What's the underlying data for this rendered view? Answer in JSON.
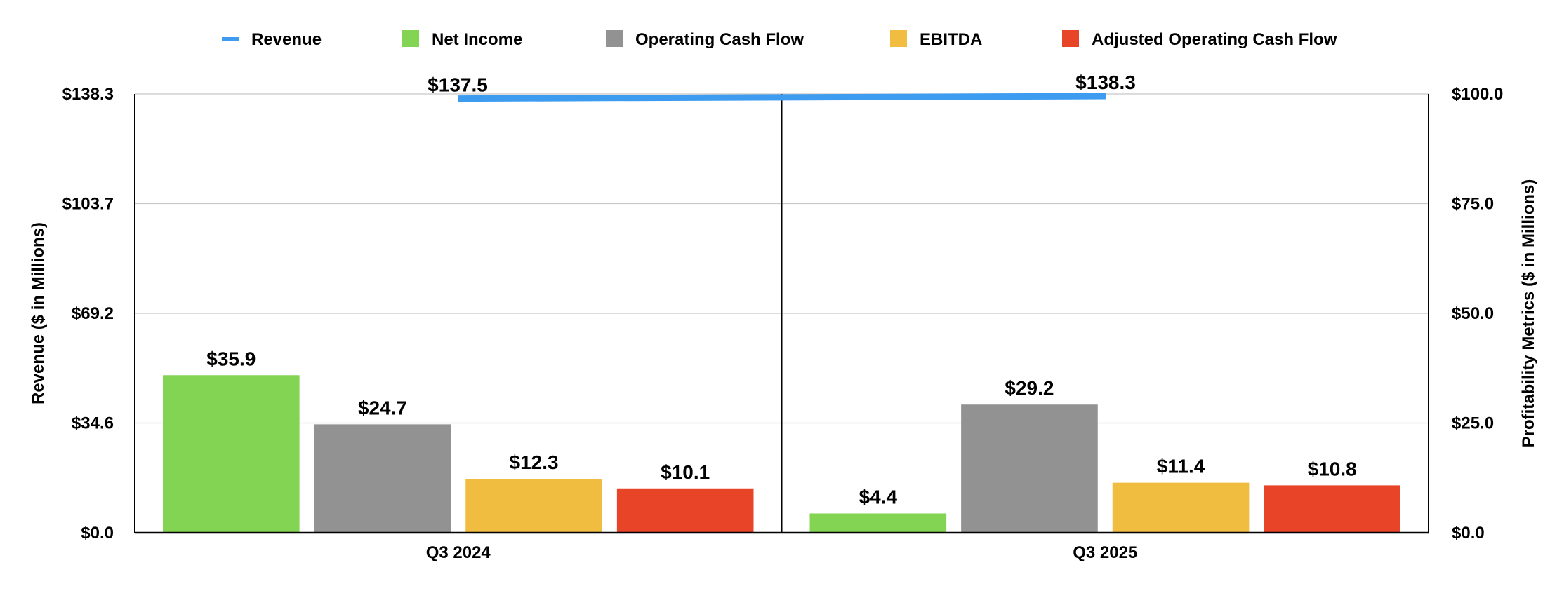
{
  "chart_data": {
    "type": "bar",
    "categories": [
      "Q3 2024",
      "Q3 2025"
    ],
    "left_axis": {
      "label": "Revenue ($ in Millions)",
      "ticks": [
        "$0.0",
        "$34.6",
        "$69.2",
        "$103.7",
        "$138.3"
      ],
      "ylim": [
        0,
        138.3
      ]
    },
    "right_axis": {
      "label": "Profitability Metrics ($ in Millions)",
      "ticks": [
        "$0.0",
        "$25.0",
        "$50.0",
        "$75.0",
        "$100.0"
      ],
      "ylim": [
        0,
        100
      ]
    },
    "grid": true,
    "legend_position": "top",
    "line_series": {
      "name": "Revenue",
      "axis": "left",
      "color": "#3D9BF0",
      "values": [
        137.5,
        138.3
      ],
      "labels": [
        "$137.5",
        "$138.3"
      ]
    },
    "series": [
      {
        "name": "Net Income",
        "axis": "right",
        "color": "#84D454",
        "values": [
          35.9,
          4.4
        ],
        "labels": [
          "$35.9",
          "$4.4"
        ]
      },
      {
        "name": "Operating Cash Flow",
        "axis": "right",
        "color": "#929292",
        "values": [
          24.7,
          29.2
        ],
        "labels": [
          "$24.7",
          "$29.2"
        ]
      },
      {
        "name": "EBITDA",
        "axis": "right",
        "color": "#F0BD40",
        "values": [
          12.3,
          11.4
        ],
        "labels": [
          "$12.3",
          "$11.4"
        ]
      },
      {
        "name": "Adjusted Operating Cash Flow",
        "axis": "right",
        "color": "#E84428",
        "values": [
          10.1,
          10.8
        ],
        "labels": [
          "$10.1",
          "$10.8"
        ]
      }
    ]
  }
}
